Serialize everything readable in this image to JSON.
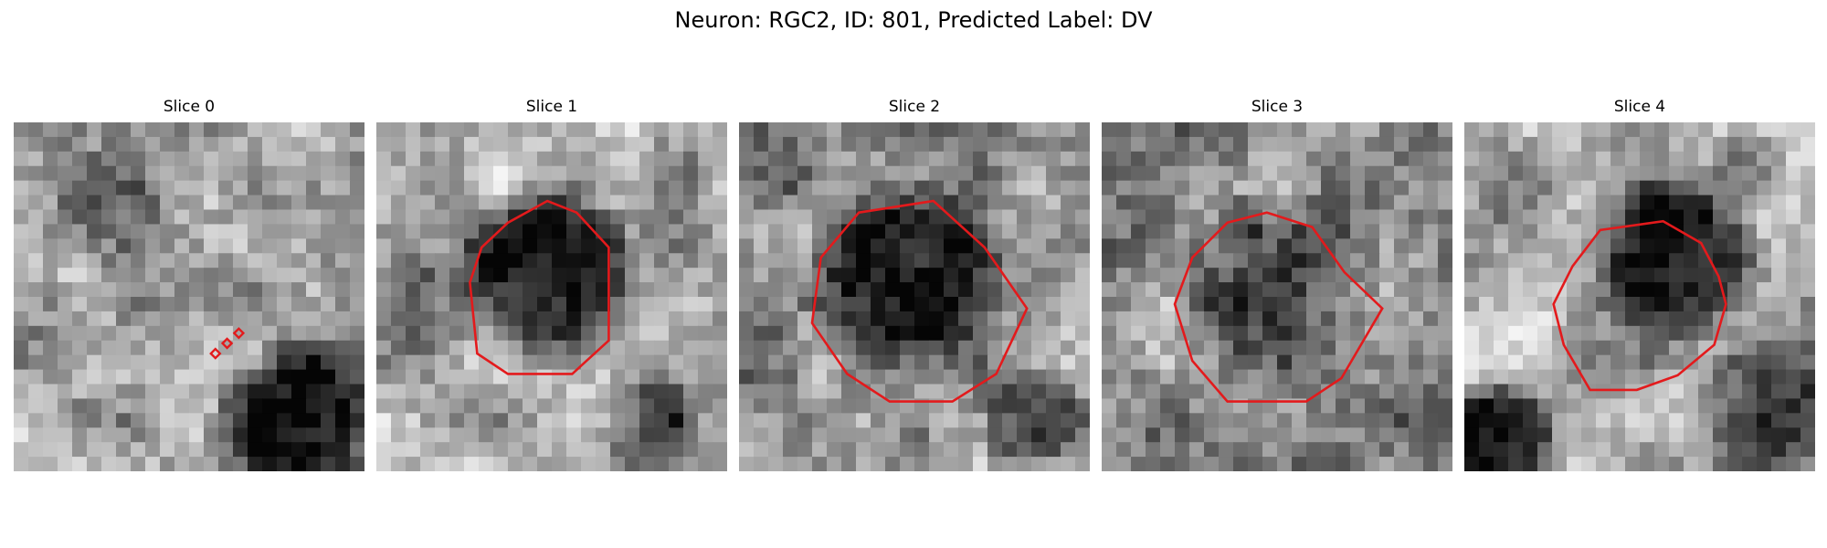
{
  "figure": {
    "title": "Neuron: RGC2, ID: 801, Predicted Label: DV"
  },
  "panels": [
    {
      "title": "Slice 0",
      "image": "grayscale-microscopy-slice",
      "contour": "small-red-diamond-markers"
    },
    {
      "title": "Slice 1",
      "image": "grayscale-microscopy-slice",
      "contour": "red-cell-outline"
    },
    {
      "title": "Slice 2",
      "image": "grayscale-microscopy-slice",
      "contour": "red-cell-outline"
    },
    {
      "title": "Slice 3",
      "image": "grayscale-microscopy-slice",
      "contour": "red-cell-outline"
    },
    {
      "title": "Slice 4",
      "image": "grayscale-microscopy-slice",
      "contour": "red-cell-outline"
    }
  ],
  "colors": {
    "contour": "#e31a1c"
  }
}
